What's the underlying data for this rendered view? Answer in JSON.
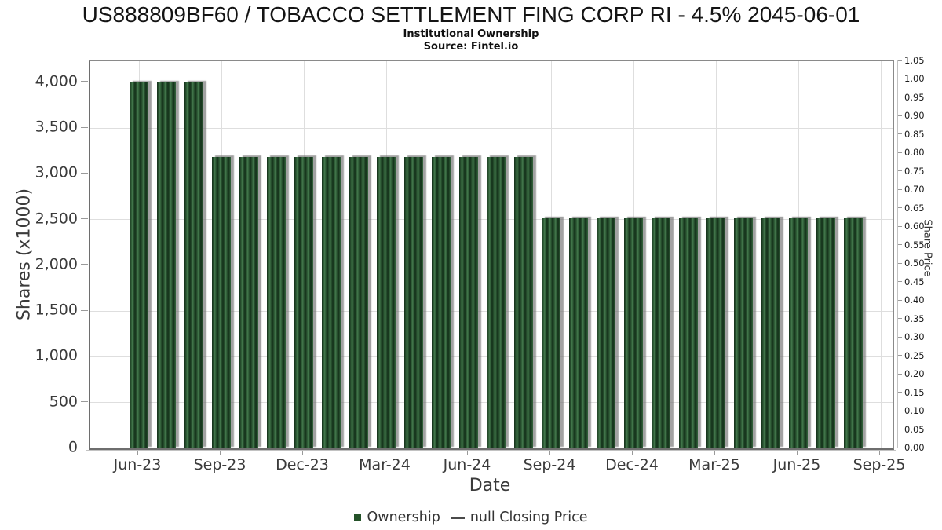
{
  "chart_data": {
    "type": "bar",
    "title": "US888809BF60 / TOBACCO SETTLEMENT FING CORP RI - 4.5% 2045-06-01",
    "subtitle": "Institutional Ownership",
    "source": "Source: Fintel.io",
    "xlabel": "Date",
    "ylabel_left": "Shares (x1000)",
    "ylabel_right": "Share Price",
    "grid": true,
    "legend_position": "bottom",
    "categories": [
      "Jun-23",
      "Jul-23",
      "Aug-23",
      "Sep-23",
      "Oct-23",
      "Nov-23",
      "Dec-23",
      "Jan-24",
      "Feb-24",
      "Mar-24",
      "Apr-24",
      "May-24",
      "Jun-24",
      "Jul-24",
      "Aug-24",
      "Sep-24",
      "Oct-24",
      "Nov-24",
      "Dec-24",
      "Jan-25",
      "Feb-25",
      "Mar-25",
      "Apr-25",
      "May-25",
      "Jun-25",
      "Jul-25",
      "Aug-25"
    ],
    "values": [
      4000,
      4000,
      4000,
      3185,
      3185,
      3185,
      3185,
      3185,
      3185,
      3185,
      3185,
      3185,
      3185,
      3185,
      3185,
      2510,
      2510,
      2510,
      2510,
      2510,
      2510,
      2510,
      2510,
      2510,
      2510,
      2510,
      2510
    ],
    "series_name": "Ownership",
    "x_tick_labels": [
      "Jun-23",
      "Sep-23",
      "Dec-23",
      "Mar-24",
      "Jun-24",
      "Sep-24",
      "Dec-24",
      "Mar-25",
      "Jun-25",
      "Sep-25"
    ],
    "y_left_tick_labels": [
      "0",
      "500",
      "1,000",
      "1,500",
      "2,000",
      "2,500",
      "3,000",
      "3,500",
      "4,000"
    ],
    "y_left_tick_values": [
      0,
      500,
      1000,
      1500,
      2000,
      2500,
      3000,
      3500,
      4000
    ],
    "ylim_left": [
      0,
      4230
    ],
    "y_right_tick_labels": [
      "0.00",
      "0.05",
      "0.10",
      "0.15",
      "0.20",
      "0.25",
      "0.30",
      "0.35",
      "0.40",
      "0.45",
      "0.50",
      "0.55",
      "0.60",
      "0.65",
      "0.70",
      "0.75",
      "0.80",
      "0.85",
      "0.90",
      "0.95",
      "1.00",
      "1.05"
    ],
    "ylim_right": [
      0,
      1.05
    ],
    "legend": [
      {
        "label": "Ownership",
        "marker": "square",
        "color": "#245229"
      },
      {
        "label": "null Closing Price",
        "marker": "line",
        "color": "#4a4a4a"
      }
    ],
    "colors": {
      "bar_dark": "#122e18",
      "bar_light": "#457a4e",
      "bar_shadow": "#767676",
      "gridline": "#dedede",
      "tick": "#9a9a9a"
    }
  }
}
